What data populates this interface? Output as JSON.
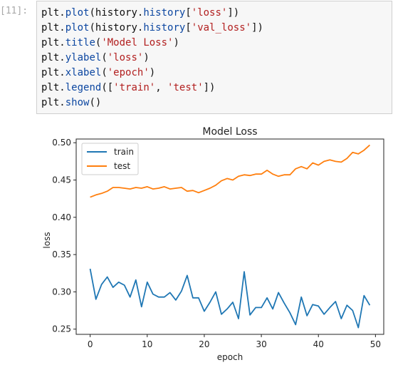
{
  "cell": {
    "prompt": "[11]:",
    "lines": [
      [
        {
          "t": "plt",
          "c": "kw"
        },
        {
          "t": ".",
          "c": "kw"
        },
        {
          "t": "plot",
          "c": "fn"
        },
        {
          "t": "(history.",
          "c": "kw"
        },
        {
          "t": "history",
          "c": "fn"
        },
        {
          "t": "[",
          "c": "kw"
        },
        {
          "t": "'loss'",
          "c": "str"
        },
        {
          "t": "])",
          "c": "kw"
        }
      ],
      [
        {
          "t": "plt",
          "c": "kw"
        },
        {
          "t": ".",
          "c": "kw"
        },
        {
          "t": "plot",
          "c": "fn"
        },
        {
          "t": "(history.",
          "c": "kw"
        },
        {
          "t": "history",
          "c": "fn"
        },
        {
          "t": "[",
          "c": "kw"
        },
        {
          "t": "'val_loss'",
          "c": "str"
        },
        {
          "t": "])",
          "c": "kw"
        }
      ],
      [
        {
          "t": "plt",
          "c": "kw"
        },
        {
          "t": ".",
          "c": "kw"
        },
        {
          "t": "title",
          "c": "fn"
        },
        {
          "t": "(",
          "c": "kw"
        },
        {
          "t": "'Model Loss'",
          "c": "str"
        },
        {
          "t": ")",
          "c": "kw"
        }
      ],
      [
        {
          "t": "plt",
          "c": "kw"
        },
        {
          "t": ".",
          "c": "kw"
        },
        {
          "t": "ylabel",
          "c": "fn"
        },
        {
          "t": "(",
          "c": "kw"
        },
        {
          "t": "'loss'",
          "c": "str"
        },
        {
          "t": ")",
          "c": "kw"
        }
      ],
      [
        {
          "t": "plt",
          "c": "kw"
        },
        {
          "t": ".",
          "c": "kw"
        },
        {
          "t": "xlabel",
          "c": "fn"
        },
        {
          "t": "(",
          "c": "kw"
        },
        {
          "t": "'epoch'",
          "c": "str"
        },
        {
          "t": ")",
          "c": "kw"
        }
      ],
      [
        {
          "t": "plt",
          "c": "kw"
        },
        {
          "t": ".",
          "c": "kw"
        },
        {
          "t": "legend",
          "c": "fn"
        },
        {
          "t": "([",
          "c": "kw"
        },
        {
          "t": "'train'",
          "c": "str"
        },
        {
          "t": ", ",
          "c": "kw"
        },
        {
          "t": "'test'",
          "c": "str"
        },
        {
          "t": "])",
          "c": "kw"
        }
      ],
      [
        {
          "t": "plt",
          "c": "kw"
        },
        {
          "t": ".",
          "c": "kw"
        },
        {
          "t": "show",
          "c": "fn"
        },
        {
          "t": "()",
          "c": "kw"
        }
      ]
    ]
  },
  "chart_data": {
    "type": "line",
    "title": "Model Loss",
    "xlabel": "epoch",
    "ylabel": "loss",
    "xlim": [
      -2.45,
      51.45
    ],
    "ylim": [
      0.243,
      0.505
    ],
    "xticks": [
      0,
      10,
      20,
      30,
      40,
      50
    ],
    "yticks": [
      0.25,
      0.3,
      0.35,
      0.4,
      0.45,
      0.5
    ],
    "ytick_labels": [
      "0.25",
      "0.30",
      "0.35",
      "0.40",
      "0.45",
      "0.50"
    ],
    "legend_position": "top-left",
    "grid": false,
    "series": [
      {
        "name": "train",
        "color": "#1f77b4",
        "values": [
          0.331,
          0.29,
          0.31,
          0.32,
          0.306,
          0.313,
          0.309,
          0.293,
          0.316,
          0.28,
          0.313,
          0.297,
          0.293,
          0.293,
          0.299,
          0.289,
          0.301,
          0.322,
          0.292,
          0.292,
          0.274,
          0.286,
          0.3,
          0.27,
          0.277,
          0.286,
          0.264,
          0.327,
          0.269,
          0.279,
          0.279,
          0.292,
          0.277,
          0.299,
          0.285,
          0.272,
          0.256,
          0.293,
          0.268,
          0.283,
          0.281,
          0.27,
          0.279,
          0.287,
          0.264,
          0.282,
          0.275,
          0.252,
          0.295,
          0.282
        ]
      },
      {
        "name": "test",
        "color": "#ff7f0e",
        "values": [
          0.427,
          0.43,
          0.432,
          0.435,
          0.44,
          0.44,
          0.439,
          0.438,
          0.44,
          0.439,
          0.441,
          0.438,
          0.439,
          0.441,
          0.438,
          0.439,
          0.44,
          0.435,
          0.436,
          0.433,
          0.436,
          0.439,
          0.443,
          0.449,
          0.452,
          0.45,
          0.455,
          0.457,
          0.456,
          0.458,
          0.458,
          0.463,
          0.458,
          0.455,
          0.457,
          0.457,
          0.465,
          0.468,
          0.465,
          0.473,
          0.47,
          0.475,
          0.477,
          0.475,
          0.474,
          0.479,
          0.487,
          0.485,
          0.49,
          0.497
        ]
      }
    ]
  }
}
